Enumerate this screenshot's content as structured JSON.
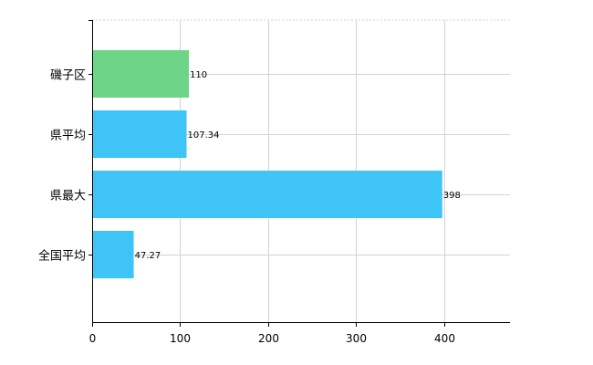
{
  "chart_data": {
    "type": "bar",
    "orientation": "horizontal",
    "categories": [
      "磯子区",
      "県平均",
      "県最大",
      "全国平均"
    ],
    "values": [
      110,
      107.34,
      398,
      47.27
    ],
    "value_labels": [
      "110",
      "107.34",
      "398",
      "47.27"
    ],
    "bar_colors": [
      "#6dd488",
      "#3ec4f7",
      "#3ec4f7",
      "#3ec4f7"
    ],
    "xlim": [
      0,
      475
    ],
    "xticks": [
      0,
      100,
      200,
      300,
      400
    ],
    "xtick_labels": [
      "0",
      "100",
      "200",
      "300",
      "400"
    ],
    "grid": true,
    "legend": false,
    "title": "",
    "xlabel": "",
    "ylabel": ""
  }
}
